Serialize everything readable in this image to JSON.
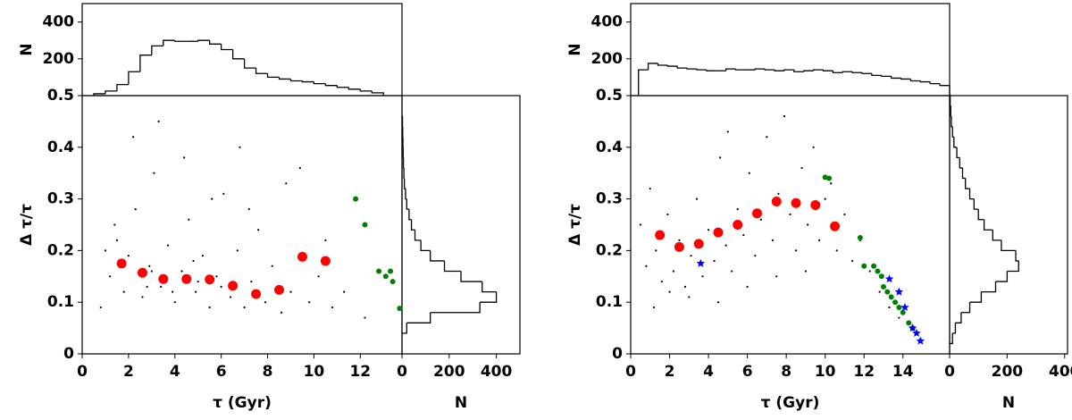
{
  "chart_data": [
    {
      "type": "scatter",
      "xlabel": "τ (Gyr)",
      "ylabel": "Δ τ/τ",
      "xlim": [
        0,
        13.8
      ],
      "ylim": [
        0,
        0.5
      ],
      "xticks": [
        0,
        2,
        4,
        6,
        8,
        10,
        12
      ],
      "yticks": [
        0,
        0.1,
        0.2,
        0.3,
        0.4,
        0.5
      ],
      "series": [
        {
          "color": "#000000",
          "marker": "point",
          "x": [
            0.8,
            1.2,
            1.5,
            1.8,
            2.0,
            2.3,
            2.6,
            2.9,
            3.1,
            3.4,
            3.7,
            4.0,
            4.3,
            4.6,
            4.9,
            5.2,
            5.5,
            5.8,
            6.1,
            6.4,
            6.7,
            7.0,
            7.3,
            7.6,
            7.9,
            8.2,
            8.6,
            9.0,
            9.4,
            9.8,
            10.2,
            10.8,
            11.3,
            2.2,
            3.3,
            4.4,
            5.6,
            6.8,
            1.4,
            2.8,
            3.9,
            5.0,
            7.2,
            8.8,
            10.5,
            12.2,
            3.0,
            4.8,
            6.0,
            1.0
          ],
          "values": [
            0.09,
            0.15,
            0.22,
            0.12,
            0.19,
            0.28,
            0.11,
            0.17,
            0.35,
            0.13,
            0.21,
            0.1,
            0.16,
            0.26,
            0.12,
            0.19,
            0.09,
            0.15,
            0.31,
            0.11,
            0.2,
            0.09,
            0.14,
            0.24,
            0.1,
            0.17,
            0.08,
            0.12,
            0.36,
            0.1,
            0.15,
            0.09,
            0.12,
            0.42,
            0.45,
            0.38,
            0.3,
            0.4,
            0.25,
            0.13,
            0.12,
            0.14,
            0.28,
            0.33,
            0.22,
            0.07,
            0.16,
            0.18,
            0.13,
            0.2
          ]
        },
        {
          "color": "#008000",
          "marker": "circle",
          "x": [
            11.8,
            12.2,
            12.8,
            13.1,
            13.3,
            13.4,
            13.7
          ],
          "values": [
            0.3,
            0.25,
            0.16,
            0.15,
            0.16,
            0.14,
            0.088
          ]
        },
        {
          "color": "#ff0000",
          "marker": "large",
          "x": [
            1.7,
            2.6,
            3.5,
            4.5,
            5.5,
            6.5,
            7.5,
            8.5,
            9.5,
            10.5
          ],
          "values": [
            0.175,
            0.157,
            0.145,
            0.145,
            0.144,
            0.132,
            0.116,
            0.124,
            0.188,
            0.18
          ]
        }
      ],
      "top_hist": {
        "ylabel": "N",
        "ylim": [
          0,
          500
        ],
        "yticks": [
          200,
          400
        ],
        "bins": [
          0.5,
          1,
          1.5,
          2,
          2.5,
          3,
          3.5,
          4,
          4.5,
          5,
          5.5,
          6,
          6.5,
          7,
          7.5,
          8,
          8.5,
          9,
          9.5,
          10,
          10.5,
          11,
          11.5,
          12,
          12.5,
          13
        ],
        "counts": [
          10,
          25,
          60,
          130,
          220,
          270,
          300,
          295,
          295,
          300,
          280,
          250,
          200,
          150,
          120,
          100,
          90,
          80,
          75,
          65,
          55,
          45,
          35,
          25,
          15
        ]
      },
      "right_hist": {
        "xlabel": "N",
        "xlim": [
          0,
          500
        ],
        "xticks": [
          0,
          200,
          400
        ],
        "bins": [
          0.04,
          0.06,
          0.08,
          0.1,
          0.12,
          0.14,
          0.16,
          0.18,
          0.2,
          0.22,
          0.24,
          0.26,
          0.28,
          0.3,
          0.32,
          0.34,
          0.36,
          0.38,
          0.4,
          0.42,
          0.44,
          0.46
        ],
        "counts": [
          20,
          120,
          330,
          400,
          340,
          250,
          180,
          120,
          80,
          55,
          40,
          30,
          20,
          15,
          10,
          8,
          6,
          5,
          4,
          3,
          2
        ]
      }
    },
    {
      "type": "scatter",
      "xlabel": "τ (Gyr)",
      "ylabel": "Δ τ/τ",
      "xlim": [
        0,
        16.4
      ],
      "ylim": [
        0,
        0.5
      ],
      "xticks": [
        0,
        2,
        4,
        6,
        8,
        10,
        12,
        14
      ],
      "yticks": [
        0,
        0.1,
        0.2,
        0.3,
        0.4,
        0.5
      ],
      "series": [
        {
          "color": "#000000",
          "marker": "point",
          "x": [
            0.5,
            0.8,
            1.0,
            1.3,
            1.6,
            1.9,
            2.2,
            2.5,
            2.8,
            3.1,
            3.4,
            3.7,
            4.0,
            4.3,
            4.6,
            4.9,
            5.2,
            5.5,
            5.8,
            6.1,
            6.4,
            6.7,
            7.0,
            7.3,
            7.6,
            7.9,
            8.2,
            8.5,
            8.8,
            9.1,
            9.4,
            9.7,
            10.0,
            10.3,
            10.6,
            11.0,
            11.4,
            11.8,
            12.3,
            12.8,
            13.3,
            13.8,
            2.0,
            3.0,
            4.5,
            6.0,
            7.5,
            9.0,
            1.2,
            5.0
          ],
          "values": [
            0.25,
            0.17,
            0.32,
            0.2,
            0.14,
            0.27,
            0.16,
            0.22,
            0.13,
            0.19,
            0.3,
            0.15,
            0.24,
            0.18,
            0.38,
            0.21,
            0.16,
            0.28,
            0.23,
            0.35,
            0.19,
            0.26,
            0.42,
            0.22,
            0.31,
            0.46,
            0.27,
            0.2,
            0.36,
            0.25,
            0.4,
            0.22,
            0.3,
            0.33,
            0.2,
            0.27,
            0.18,
            0.22,
            0.16,
            0.12,
            0.09,
            0.07,
            0.12,
            0.11,
            0.1,
            0.13,
            0.15,
            0.16,
            0.09,
            0.43
          ]
        },
        {
          "color": "#008000",
          "marker": "circle",
          "x": [
            10,
            10.2,
            11.8,
            12,
            12.5,
            12.7,
            12.9,
            13,
            13.2,
            13.4,
            13.6,
            13.8,
            14,
            14.3,
            14.5
          ],
          "values": [
            0.342,
            0.34,
            0.225,
            0.17,
            0.17,
            0.16,
            0.15,
            0.13,
            0.12,
            0.11,
            0.1,
            0.09,
            0.08,
            0.06,
            0.05
          ]
        },
        {
          "color": "#0000ff",
          "marker": "star",
          "x": [
            3.6,
            13.3,
            13.8,
            14.1,
            14.5,
            14.7,
            14.9
          ],
          "values": [
            0.175,
            0.145,
            0.12,
            0.09,
            0.05,
            0.04,
            0.025
          ]
        },
        {
          "color": "#ff0000",
          "marker": "large",
          "x": [
            1.5,
            2.5,
            3.5,
            4.5,
            5.5,
            6.5,
            7.5,
            8.5,
            9.5,
            10.5
          ],
          "values": [
            0.23,
            0.207,
            0.213,
            0.235,
            0.25,
            0.272,
            0.295,
            0.292,
            0.288,
            0.247
          ]
        }
      ],
      "top_hist": {
        "ylabel": "N",
        "ylim": [
          0,
          500
        ],
        "yticks": [
          200,
          400
        ],
        "bins": [
          0.4,
          0.9,
          1.4,
          1.9,
          2.4,
          2.9,
          3.4,
          3.9,
          4.4,
          4.9,
          5.4,
          5.9,
          6.4,
          6.9,
          7.4,
          7.9,
          8.4,
          8.9,
          9.4,
          9.9,
          10.4,
          10.9,
          11.4,
          11.9,
          12.4,
          12.9,
          13.4,
          13.9,
          14.4,
          14.9,
          15.4,
          15.9,
          16.4
        ],
        "counts": [
          140,
          175,
          165,
          160,
          150,
          145,
          140,
          135,
          135,
          145,
          140,
          140,
          145,
          140,
          135,
          140,
          130,
          135,
          140,
          135,
          125,
          130,
          125,
          120,
          110,
          105,
          95,
          90,
          80,
          75,
          65,
          55
        ]
      },
      "right_hist": {
        "xlabel": "N",
        "xlim": [
          0,
          410
        ],
        "xticks": [
          0,
          200,
          400
        ],
        "bins": [
          0.02,
          0.04,
          0.06,
          0.08,
          0.1,
          0.12,
          0.14,
          0.16,
          0.18,
          0.2,
          0.22,
          0.24,
          0.26,
          0.28,
          0.3,
          0.32,
          0.34,
          0.36,
          0.38,
          0.4,
          0.42,
          0.44,
          0.46,
          0.48,
          0.5
        ],
        "counts": [
          10,
          20,
          40,
          70,
          110,
          160,
          200,
          240,
          230,
          180,
          150,
          120,
          100,
          85,
          70,
          55,
          45,
          35,
          25,
          15,
          10,
          6,
          4,
          2
        ]
      }
    }
  ]
}
